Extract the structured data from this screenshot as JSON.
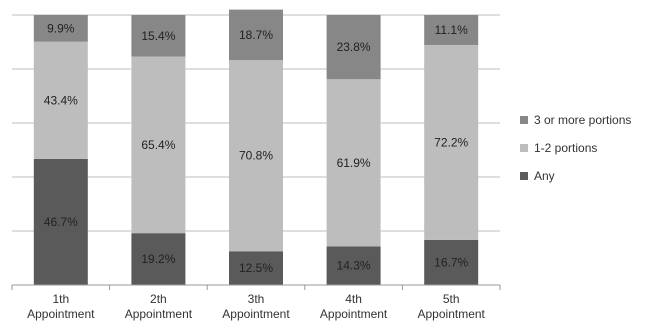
{
  "chart_data": {
    "type": "bar",
    "stacked": true,
    "categories": [
      [
        "1th",
        "Appointment"
      ],
      [
        "2th",
        "Appointment"
      ],
      [
        "3th",
        "Appointment"
      ],
      [
        "4th",
        "Appointment"
      ],
      [
        "5th",
        "Appointment"
      ]
    ],
    "series": [
      {
        "name": "Any",
        "color": "#5a5a5a",
        "values": [
          46.7,
          19.2,
          12.5,
          14.3,
          16.7
        ],
        "labels": [
          "46.7%",
          "19.2%",
          "12.5%",
          "14.3%",
          "16.7%"
        ]
      },
      {
        "name": "1-2 portions",
        "color": "#bdbdbd",
        "values": [
          43.4,
          65.4,
          70.8,
          61.9,
          72.2
        ],
        "labels": [
          "43.4%",
          "65.4%",
          "70.8%",
          "61.9%",
          "72.2%"
        ]
      },
      {
        "name": "3 or more portions",
        "color": "#878787",
        "values": [
          9.9,
          15.4,
          18.7,
          23.8,
          11.1
        ],
        "labels": [
          "9.9%",
          "15.4%",
          "18.7%",
          "23.8%",
          "11.1%"
        ]
      }
    ],
    "ylim": [
      0,
      100
    ],
    "grid": true,
    "legend_position": "right",
    "title": "",
    "xlabel": "",
    "ylabel": ""
  },
  "legend": {
    "items": [
      {
        "label": "3 or more portions",
        "color": "#878787"
      },
      {
        "label": "1-2 portions",
        "color": "#bdbdbd"
      },
      {
        "label": "Any",
        "color": "#5a5a5a"
      }
    ]
  }
}
